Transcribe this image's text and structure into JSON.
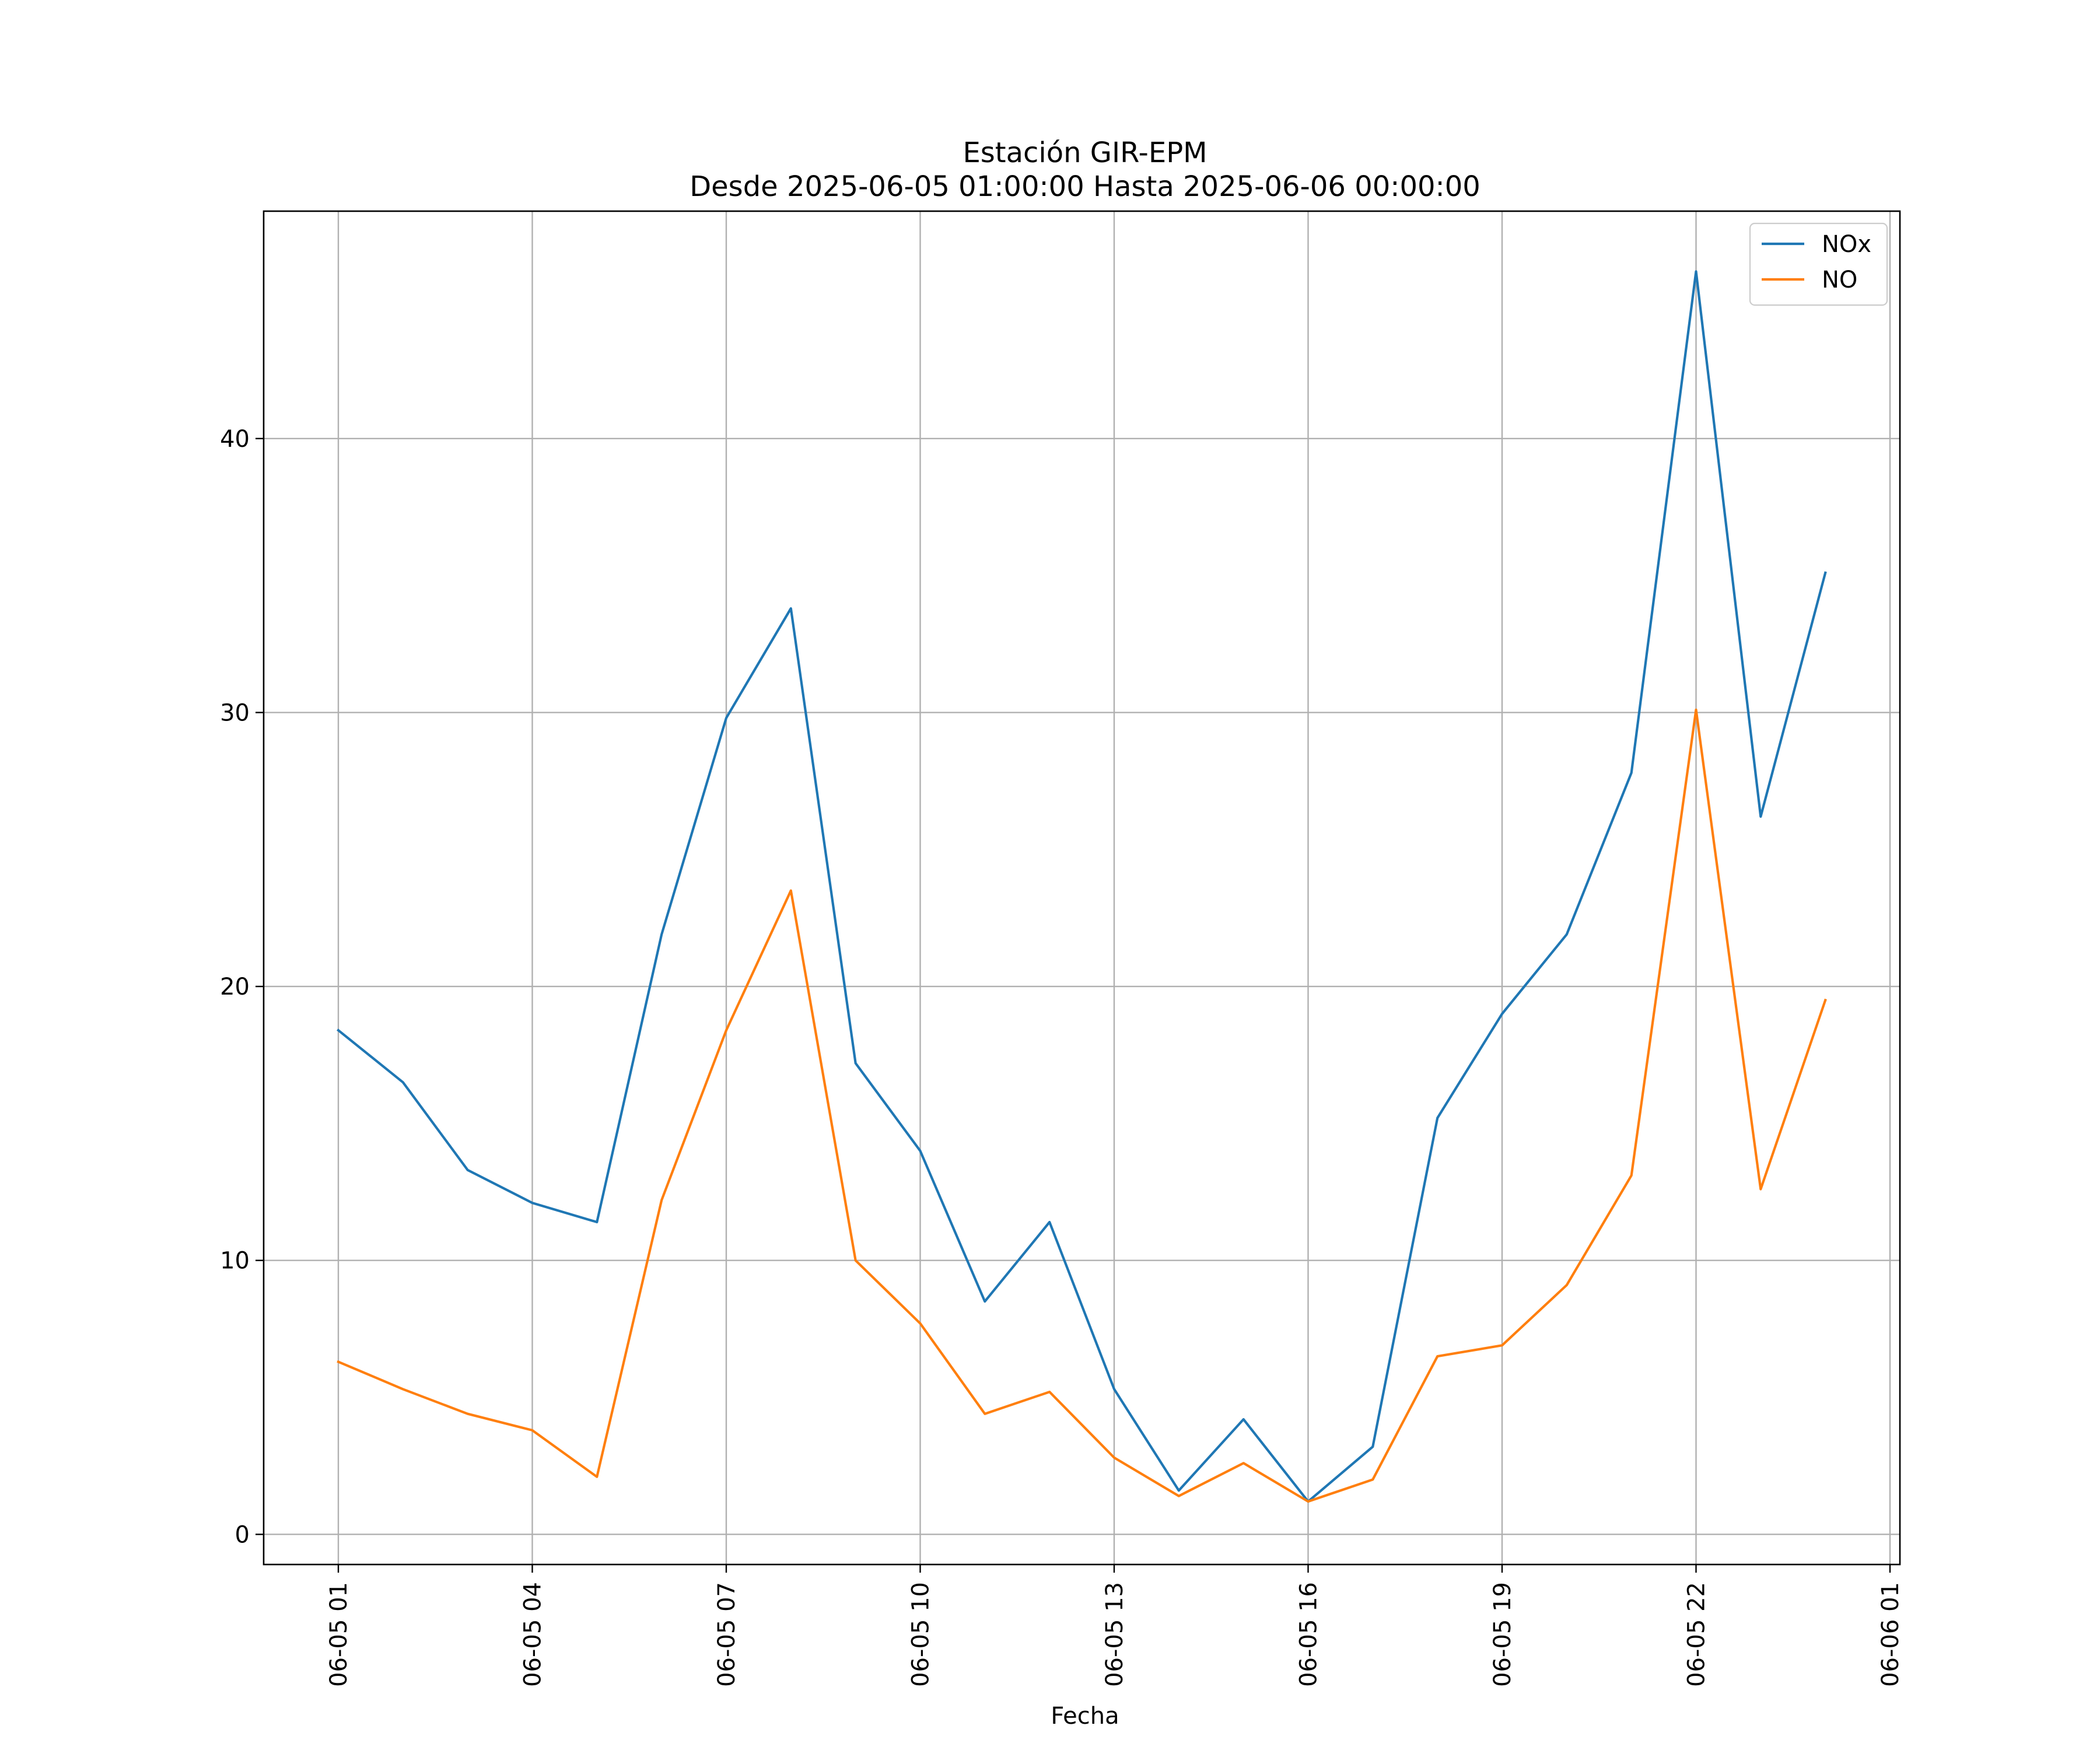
{
  "chart_data": {
    "type": "line",
    "title": "Estación GIR-EPM",
    "subtitle": "Desde 2025-06-05 01:00:00 Hasta 2025-06-06 00:00:00",
    "xlabel": "Fecha",
    "ylabel": "",
    "x": [
      "06-05 01",
      "06-05 02",
      "06-05 03",
      "06-05 04",
      "06-05 05",
      "06-05 06",
      "06-05 07",
      "06-05 08",
      "06-05 09",
      "06-05 10",
      "06-05 11",
      "06-05 12",
      "06-05 13",
      "06-05 14",
      "06-05 15",
      "06-05 16",
      "06-05 17",
      "06-05 18",
      "06-05 19",
      "06-05 20",
      "06-05 21",
      "06-05 22",
      "06-05 23",
      "06-06 00"
    ],
    "x_tick_labels": [
      "06-05 01",
      "06-05 04",
      "06-05 07",
      "06-05 10",
      "06-05 13",
      "06-05 16",
      "06-05 19",
      "06-05 22",
      "06-06 01"
    ],
    "y_ticks": [
      0,
      10,
      20,
      30,
      40
    ],
    "ylim": [
      -1.1,
      48.3
    ],
    "grid": true,
    "legend_position": "top-right",
    "series": [
      {
        "name": "NOx",
        "color": "#1f77b4",
        "values": [
          18.4,
          16.5,
          13.3,
          12.1,
          11.4,
          21.9,
          29.8,
          33.8,
          17.2,
          14.0,
          8.5,
          11.4,
          5.3,
          1.6,
          4.2,
          1.2,
          3.2,
          15.2,
          19.0,
          21.9,
          27.8,
          46.1,
          26.2,
          35.1
        ]
      },
      {
        "name": "NO",
        "color": "#ff7f0e",
        "values": [
          6.3,
          5.3,
          4.4,
          3.8,
          2.1,
          12.2,
          18.4,
          23.5,
          10.0,
          7.7,
          4.4,
          5.2,
          2.8,
          1.4,
          2.6,
          1.2,
          2.0,
          6.5,
          6.9,
          9.1,
          13.1,
          30.1,
          12.6,
          19.5
        ]
      }
    ]
  }
}
